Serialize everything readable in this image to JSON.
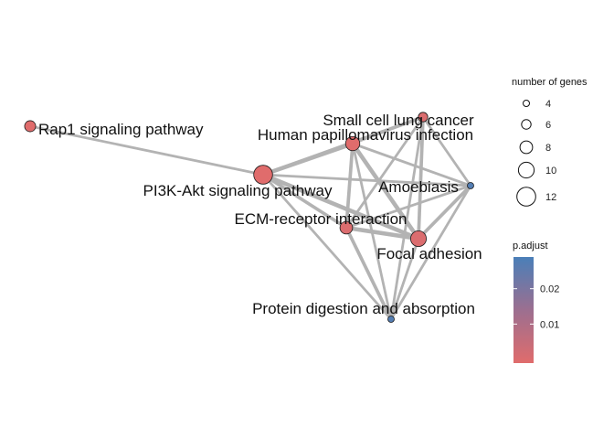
{
  "chart_data": {
    "type": "network",
    "nodes": [
      {
        "id": "rap1",
        "label": "Rap1 signaling pathway",
        "genes": 7,
        "p_adjust": 0.0
      },
      {
        "id": "pi3k",
        "label": "PI3K-Akt signaling pathway",
        "genes": 12,
        "p_adjust": 0.0
      },
      {
        "id": "hpv",
        "label": "Human papillomavirus infection",
        "genes": 9,
        "p_adjust": 0.0
      },
      {
        "id": "sclc",
        "label": "Small cell lung cancer",
        "genes": 6,
        "p_adjust": 0.001
      },
      {
        "id": "amoeb",
        "label": "Amoebiasis",
        "genes": 4,
        "p_adjust": 0.028
      },
      {
        "id": "ecm",
        "label": "ECM-receptor interaction",
        "genes": 8,
        "p_adjust": 0.001
      },
      {
        "id": "focal",
        "label": "Focal adhesion",
        "genes": 10,
        "p_adjust": 0.001
      },
      {
        "id": "protein",
        "label": "Protein digestion and absorption",
        "genes": 4,
        "p_adjust": 0.028
      }
    ],
    "edges": [
      {
        "source": "rap1",
        "target": "pi3k",
        "weight": 2
      },
      {
        "source": "pi3k",
        "target": "hpv",
        "weight": 4
      },
      {
        "source": "pi3k",
        "target": "sclc",
        "weight": 3
      },
      {
        "source": "pi3k",
        "target": "amoeb",
        "weight": 2
      },
      {
        "source": "pi3k",
        "target": "ecm",
        "weight": 3
      },
      {
        "source": "pi3k",
        "target": "focal",
        "weight": 4
      },
      {
        "source": "pi3k",
        "target": "protein",
        "weight": 2
      },
      {
        "source": "hpv",
        "target": "sclc",
        "weight": 2
      },
      {
        "source": "hpv",
        "target": "amoeb",
        "weight": 2
      },
      {
        "source": "hpv",
        "target": "ecm",
        "weight": 3
      },
      {
        "source": "hpv",
        "target": "focal",
        "weight": 4
      },
      {
        "source": "hpv",
        "target": "protein",
        "weight": 2
      },
      {
        "source": "sclc",
        "target": "amoeb",
        "weight": 2
      },
      {
        "source": "sclc",
        "target": "ecm",
        "weight": 2
      },
      {
        "source": "sclc",
        "target": "focal",
        "weight": 3
      },
      {
        "source": "sclc",
        "target": "protein",
        "weight": 2
      },
      {
        "source": "amoeb",
        "target": "ecm",
        "weight": 2
      },
      {
        "source": "amoeb",
        "target": "focal",
        "weight": 3
      },
      {
        "source": "amoeb",
        "target": "protein",
        "weight": 2
      },
      {
        "source": "ecm",
        "target": "focal",
        "weight": 4
      },
      {
        "source": "ecm",
        "target": "protein",
        "weight": 3
      },
      {
        "source": "focal",
        "target": "protein",
        "weight": 2
      }
    ],
    "size_legend": {
      "title": "number of genes",
      "values": [
        4,
        6,
        8,
        10,
        12
      ]
    },
    "color_legend": {
      "title": "p.adjust",
      "low": 0.0,
      "high": 0.03,
      "ticks": [
        0.01,
        0.02
      ],
      "tick_labels": [
        "0.01",
        "0.02"
      ],
      "low_color": "#E06C6C",
      "high_color": "#4A7FB8"
    },
    "edge_color": "#B3B3B3",
    "node_stroke": "#1a1a1a"
  }
}
